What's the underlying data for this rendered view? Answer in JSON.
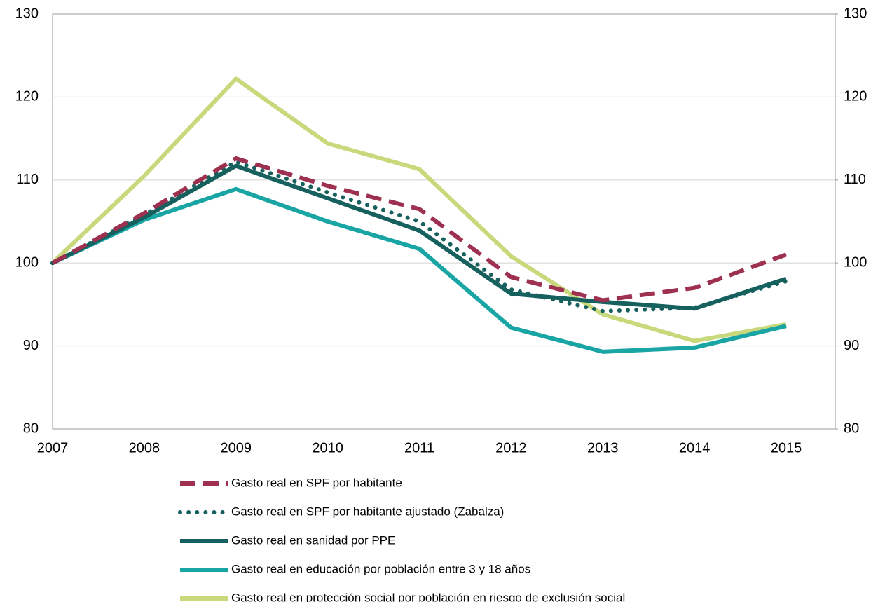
{
  "chart_data": {
    "type": "line",
    "categories": [
      "2007",
      "2008",
      "2009",
      "2010",
      "2011",
      "2012",
      "2013",
      "2014",
      "2015"
    ],
    "series": [
      {
        "name": "Gasto real en SPF por habitante",
        "color": "#9e3050",
        "dash": "dashed",
        "values": [
          100,
          106,
          112.6,
          109.3,
          106.5,
          98.3,
          95.5,
          97,
          101
        ]
      },
      {
        "name": "Gasto real en SPF por habitante ajustado (Zabalza)",
        "color": "#16605e",
        "dash": "dotted",
        "values": [
          100,
          105.8,
          112.2,
          108.5,
          105,
          96.8,
          94.2,
          94.6,
          97.8
        ]
      },
      {
        "name": "Gasto real en sanidad por PPE",
        "color": "#16605e",
        "dash": "solid",
        "values": [
          100,
          105.5,
          111.7,
          107.8,
          103.9,
          96.3,
          95.3,
          94.5,
          98.1
        ]
      },
      {
        "name": "Gasto real en educación por población entre 3 y 18 años",
        "color": "#1aa5a5",
        "dash": "solid",
        "values": [
          100,
          105.2,
          108.9,
          105,
          101.7,
          92.2,
          89.3,
          89.8,
          92.4
        ]
      },
      {
        "name": "Gasto real en protección social por población en riesgo de exclusión social",
        "color": "#c8d97c",
        "dash": "solid",
        "values": [
          100,
          110.5,
          122.2,
          114.4,
          111.3,
          100.8,
          93.8,
          90.6,
          92.6
        ]
      }
    ],
    "ylim": [
      80,
      130
    ],
    "yticks": [
      80,
      90,
      100,
      110,
      120,
      130
    ],
    "y2lim": [
      80,
      130
    ],
    "y2ticks": [
      80,
      90,
      100,
      110,
      120,
      130
    ],
    "grid": true,
    "legend": "bottom"
  }
}
